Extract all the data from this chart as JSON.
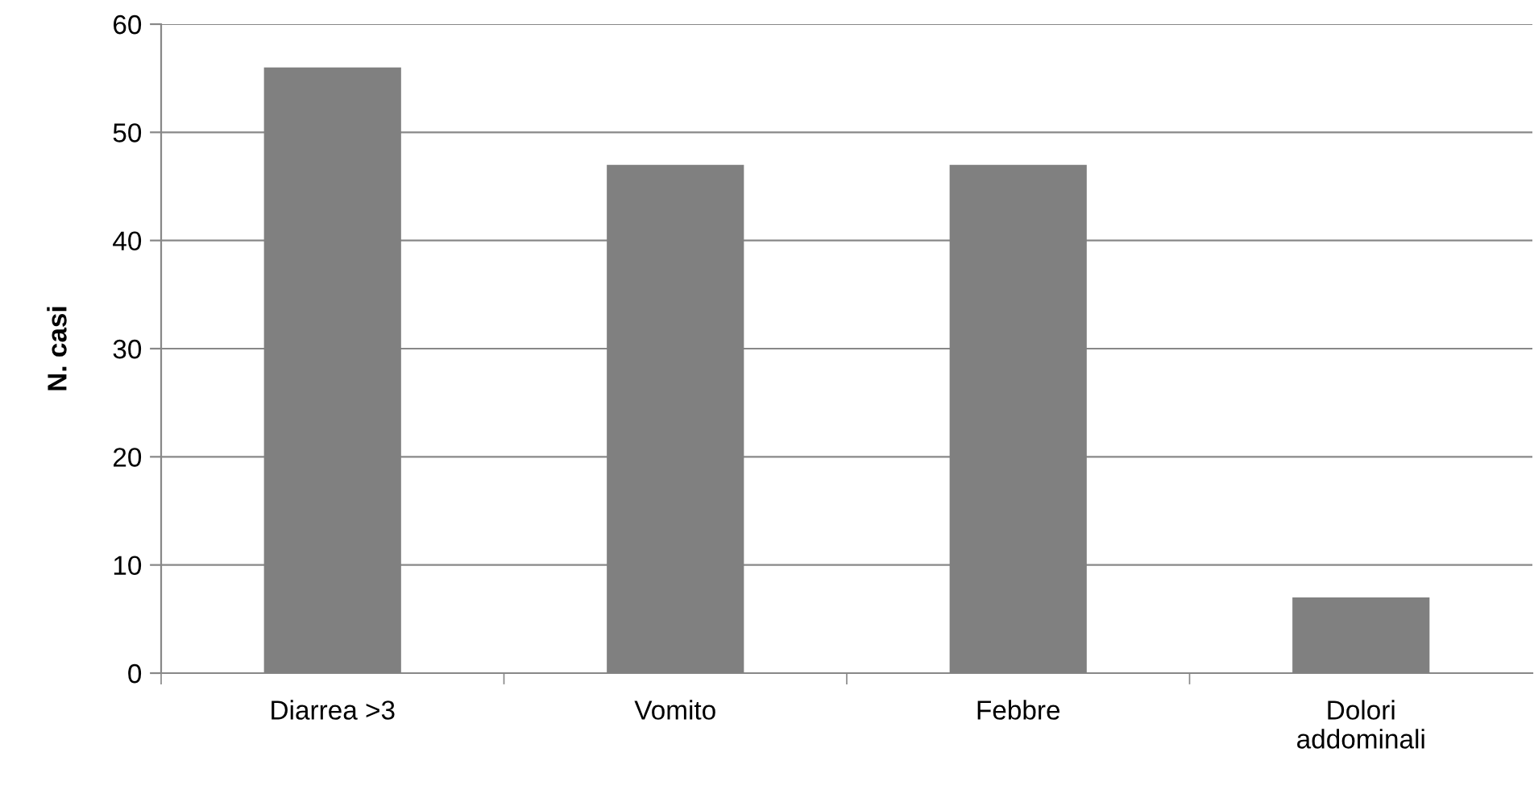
{
  "chart_data": {
    "type": "bar",
    "ylabel": "N. casi",
    "categories": [
      "Diarrea >3",
      "Vomito",
      "Febbre",
      "Dolori\naddominali"
    ],
    "values": [
      56,
      47,
      47,
      7
    ],
    "color": "#808080",
    "ylim": [
      0,
      60
    ],
    "yticks": [
      0,
      10,
      20,
      30,
      40,
      50,
      60
    ],
    "grid": "y",
    "legend": false
  }
}
